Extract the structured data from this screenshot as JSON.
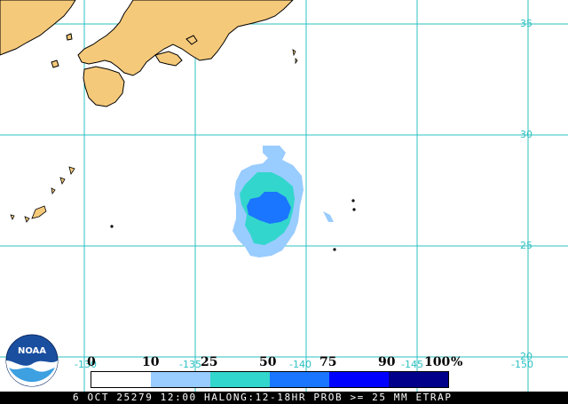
{
  "map": {
    "latitude_labels": [
      "35",
      "30",
      "25",
      "20"
    ],
    "longitude_labels": [
      "-130",
      "-135",
      "-140",
      "-145",
      "-150"
    ]
  },
  "legend": {
    "thresholds": [
      "0",
      "10",
      "25",
      "50",
      "75",
      "90",
      "100"
    ],
    "unit": "%",
    "colors": [
      "#ffffff",
      "#99ccff",
      "#33d6cc",
      "#1a75ff",
      "#0000ff",
      "#00008b"
    ]
  },
  "footer": {
    "text": "6 OCT 25279 12:00 HALONG:12-18HR PROB >= 25 MM ETRAP"
  },
  "logo": {
    "text": "NOAA"
  },
  "colors": {
    "grid": "#2dc0c0",
    "land": "#f5c97a",
    "land_outline": "#000000"
  }
}
